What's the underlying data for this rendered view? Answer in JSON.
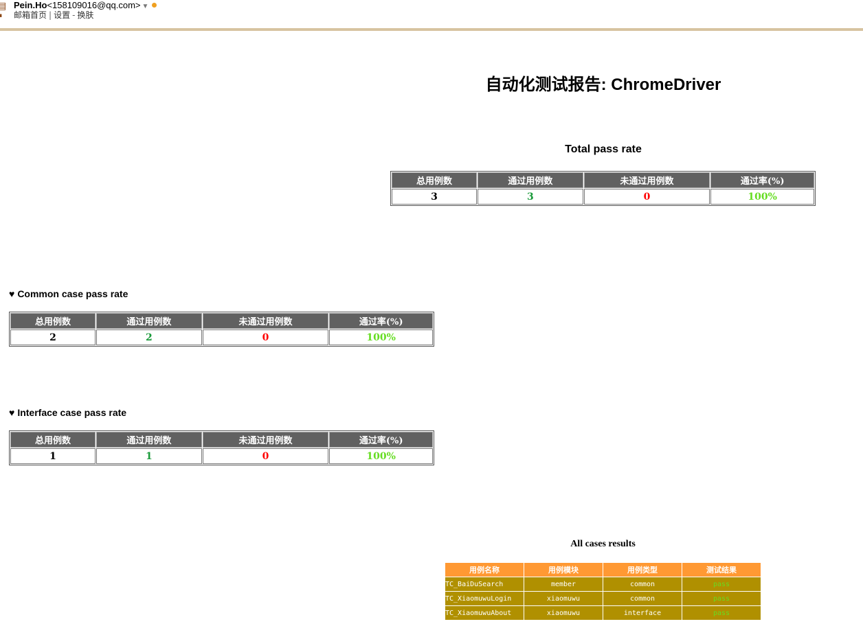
{
  "mail": {
    "user_name": "Pein.Ho",
    "user_email": "<158109016@qq.com>",
    "nav_home": "邮箱首页",
    "nav_settings": "设置",
    "nav_skin": "换肤",
    "separator": "|",
    "dash": "-"
  },
  "report": {
    "title": "自动化测试报告: ChromeDriver",
    "headers": [
      "总用例数",
      "通过用例数",
      "未通过用例数",
      "通过率(%)"
    ],
    "total": {
      "heading": "Total pass rate",
      "values": [
        "3",
        "3",
        "0",
        "100%"
      ]
    },
    "common": {
      "heading": "Common case pass rate",
      "values": [
        "2",
        "2",
        "0",
        "100%"
      ]
    },
    "interface": {
      "heading": "Interface case pass rate",
      "values": [
        "1",
        "1",
        "0",
        "100%"
      ]
    },
    "all_cases": {
      "heading": "All cases results",
      "headers": [
        "用例名称",
        "用例模块",
        "用例类型",
        "测试结果"
      ],
      "rows": [
        [
          "TC_BaiDuSearch",
          "member",
          "common",
          "pass"
        ],
        [
          "TC_XiaomuwuLogin",
          "xiaomuwu",
          "common",
          "pass"
        ],
        [
          "TC_XiaomuwuAbout",
          "xiaomuwu",
          "interface",
          "pass"
        ]
      ]
    }
  },
  "colors": {
    "header_bg": "#616161",
    "pass_green": "#1a9a3a",
    "fail_red": "#ff0000",
    "rate_green": "#66dd22",
    "case_header_bg": "#ff9933",
    "case_row_bg": "#b09000",
    "topbar_rule": "#d7c3a0"
  }
}
